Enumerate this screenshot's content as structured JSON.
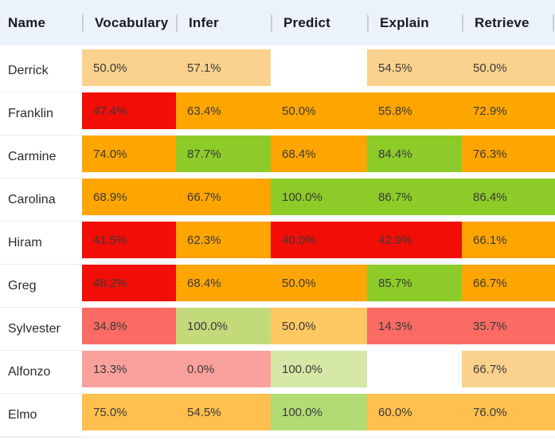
{
  "table": {
    "columns": [
      {
        "label": "Name"
      },
      {
        "label": "Vocabulary"
      },
      {
        "label": "Infer"
      },
      {
        "label": "Predict"
      },
      {
        "label": "Explain"
      },
      {
        "label": "Retrieve"
      }
    ],
    "rows": [
      {
        "name": "Derrick",
        "cells": [
          {
            "value": "50.0%",
            "bg": "#FBD28D"
          },
          {
            "value": "57.1%",
            "bg": "#FBD28D"
          },
          {
            "value": "",
            "bg": "#FFFFFF"
          },
          {
            "value": "54.5%",
            "bg": "#FBD28D"
          },
          {
            "value": "50.0%",
            "bg": "#FBD28D"
          }
        ]
      },
      {
        "name": "Franklin",
        "cells": [
          {
            "value": "47.4%",
            "bg": "#F20D07"
          },
          {
            "value": "63.4%",
            "bg": "#FFA500"
          },
          {
            "value": "50.0%",
            "bg": "#FFA500"
          },
          {
            "value": "55.8%",
            "bg": "#FFA500"
          },
          {
            "value": "72.9%",
            "bg": "#FFA500"
          }
        ]
      },
      {
        "name": "Carmine",
        "cells": [
          {
            "value": "74.0%",
            "bg": "#FFA500"
          },
          {
            "value": "87.7%",
            "bg": "#8CCB28"
          },
          {
            "value": "68.4%",
            "bg": "#FFA500"
          },
          {
            "value": "84.4%",
            "bg": "#8CCB28"
          },
          {
            "value": "76.3%",
            "bg": "#FFA500"
          }
        ]
      },
      {
        "name": "Carolina",
        "cells": [
          {
            "value": "68.9%",
            "bg": "#FFA500"
          },
          {
            "value": "66.7%",
            "bg": "#FFA500"
          },
          {
            "value": "100.0%",
            "bg": "#8CCB28"
          },
          {
            "value": "86.7%",
            "bg": "#8CCB28"
          },
          {
            "value": "86.4%",
            "bg": "#8CCB28"
          }
        ]
      },
      {
        "name": "Hiram",
        "cells": [
          {
            "value": "41.5%",
            "bg": "#F20D07"
          },
          {
            "value": "62.3%",
            "bg": "#FFA500"
          },
          {
            "value": "40.0%",
            "bg": "#F20D07"
          },
          {
            "value": "42.9%",
            "bg": "#F20D07"
          },
          {
            "value": "66.1%",
            "bg": "#FFA500"
          }
        ]
      },
      {
        "name": "Greg",
        "cells": [
          {
            "value": "48.2%",
            "bg": "#F20D07"
          },
          {
            "value": "68.4%",
            "bg": "#FFA500"
          },
          {
            "value": "50.0%",
            "bg": "#FFA500"
          },
          {
            "value": "85.7%",
            "bg": "#8CCB28"
          },
          {
            "value": "66.7%",
            "bg": "#FFA500"
          }
        ]
      },
      {
        "name": "Sylvester",
        "cells": [
          {
            "value": "34.8%",
            "bg": "#F96B63"
          },
          {
            "value": "100.0%",
            "bg": "#C3DA7B"
          },
          {
            "value": "50.0%",
            "bg": "#FFC863"
          },
          {
            "value": "14.3%",
            "bg": "#F96B63"
          },
          {
            "value": "35.7%",
            "bg": "#F96B63"
          }
        ]
      },
      {
        "name": "Alfonzo",
        "cells": [
          {
            "value": "13.3%",
            "bg": "#FAA19E"
          },
          {
            "value": "0.0%",
            "bg": "#FAA19E"
          },
          {
            "value": "100.0%",
            "bg": "#D5E8A6"
          },
          {
            "value": "",
            "bg": "#FFFFFF"
          },
          {
            "value": "66.7%",
            "bg": "#FBD28D"
          }
        ]
      },
      {
        "name": "Elmo",
        "cells": [
          {
            "value": "75.0%",
            "bg": "#FFC04D"
          },
          {
            "value": "54.5%",
            "bg": "#FFC04D"
          },
          {
            "value": "100.0%",
            "bg": "#B1DB74"
          },
          {
            "value": "60.0%",
            "bg": "#FFC04D"
          },
          {
            "value": "76.0%",
            "bg": "#FFC04D"
          }
        ]
      }
    ]
  },
  "colors": {
    "header_bg": "#ECF2FB",
    "header_divider": "#C7CDD7",
    "score_red": "#F20D07",
    "score_orange": "#FFA500",
    "score_green": "#8CCB28",
    "score_tan": "#FBD28D",
    "score_salmon": "#F96B63",
    "score_pink": "#FAA19E",
    "score_light_orange": "#FFC04D",
    "score_light_green": "#B1DB74"
  }
}
